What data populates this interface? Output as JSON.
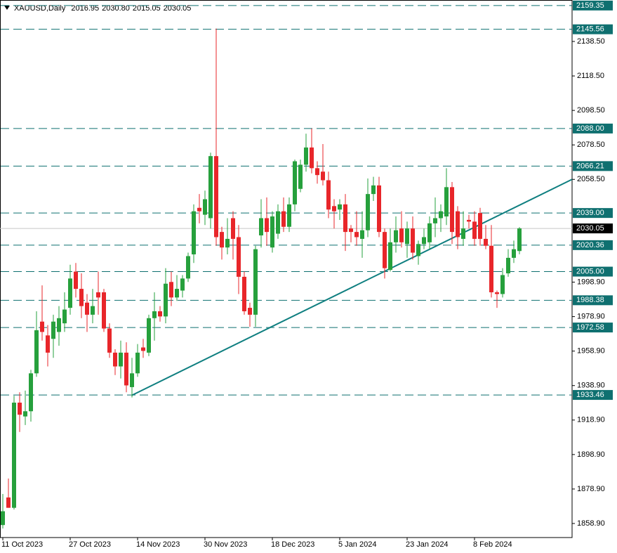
{
  "chart_data": {
    "type": "candlestick",
    "header": {
      "symbol": "XAUUSD,Daily",
      "ohlc": [
        "2016.95",
        "2030.80",
        "2015.05",
        "2030.05"
      ]
    },
    "categories": [
      "11 Oct 2023",
      null,
      null,
      null,
      null,
      null,
      null,
      null,
      null,
      null,
      null,
      null,
      "27 Oct 2023",
      null,
      null,
      null,
      null,
      null,
      null,
      null,
      null,
      null,
      null,
      null,
      "14 Nov 2023",
      null,
      null,
      null,
      null,
      null,
      null,
      null,
      null,
      null,
      null,
      null,
      "30 Nov 2023",
      null,
      null,
      null,
      null,
      null,
      null,
      null,
      null,
      null,
      null,
      null,
      "18 Dec 2023",
      null,
      null,
      null,
      null,
      null,
      null,
      null,
      null,
      null,
      null,
      null,
      "5 Jan 2024",
      null,
      null,
      null,
      null,
      null,
      null,
      null,
      null,
      null,
      null,
      null,
      "23 Jan 2024",
      null,
      null,
      null,
      null,
      null,
      null,
      null,
      null,
      null,
      null,
      null,
      "8 Feb 2024",
      null,
      null,
      null,
      null,
      null,
      null,
      null,
      null
    ],
    "open": [
      1858,
      1874,
      1868,
      1929,
      1921,
      1924,
      1946,
      1976,
      1968,
      1966,
      1970,
      1975,
      1984,
      2005,
      1995,
      1987,
      1980,
      1993,
      1993,
      1972,
      1958,
      1950,
      1958,
      1938,
      1946,
      1961,
      1958,
      1978,
      1982,
      1979,
      1999,
      1990,
      1994,
      2001,
      2015,
      2042,
      2038,
      2036,
      2072,
      2028,
      2019,
      2036,
      2025,
      2002,
      1984,
      1980,
      2026,
      2036,
      2019,
      2027,
      2040,
      2031,
      2044,
      2053,
      2067,
      2077,
      2065,
      2063,
      2058,
      2043,
      2041,
      2044,
      2030,
      2028,
      2024,
      2029,
      2050,
      2055,
      2028,
      2006,
      2022,
      2030,
      2021,
      2030,
      2014,
      2021,
      2022,
      2033,
      2036,
      2037,
      2054,
      2040,
      2024,
      2035,
      2034,
      2039,
      2024,
      2020,
      1993,
      1992,
      2004,
      2013,
      2016.95
    ],
    "high": [
      1876,
      1885,
      1933,
      1935,
      1936,
      1948,
      1982,
      1997,
      1974,
      1980,
      1985,
      1993,
      2009,
      2010,
      2004,
      1992,
      1995,
      2005,
      1995,
      1975,
      1960,
      1965,
      1964,
      1955,
      1963,
      1966,
      1980,
      1993,
      1985,
      2007,
      2005,
      2003,
      2003,
      2016,
      2044,
      2050,
      2052,
      2074,
      2146,
      2031,
      2036,
      2040,
      2032,
      2005,
      1987,
      2020,
      2047,
      2048,
      2040,
      2044,
      2048,
      2048,
      2070,
      2070,
      2085,
      2088,
      2069,
      2079,
      2063,
      2047,
      2047,
      2050,
      2032,
      2040,
      2040,
      2059,
      2060,
      2060,
      2030,
      2030,
      2037,
      2040,
      2034,
      2037,
      2023,
      2030,
      2037,
      2048,
      2044,
      2065,
      2057,
      2043,
      2040,
      2038,
      2040,
      2042,
      2032,
      2032,
      1994,
      2007,
      2018,
      2023,
      2030.8
    ],
    "low": [
      1856,
      1868,
      1867,
      1912,
      1916,
      1918,
      1944,
      1965,
      1950,
      1955,
      1962,
      1970,
      1980,
      1990,
      1978,
      1970,
      1975,
      1980,
      1970,
      1955,
      1945,
      1943,
      1935,
      1932,
      1944,
      1955,
      1956,
      1965,
      1976,
      1975,
      1985,
      1988,
      1990,
      1999,
      2010,
      2033,
      2032,
      2030,
      2020,
      2012,
      2015,
      2012,
      1992,
      1980,
      1973,
      1973,
      2019,
      2020,
      2016,
      2024,
      2028,
      2028,
      2040,
      2051,
      2063,
      2062,
      2056,
      2055,
      2036,
      2030,
      2035,
      2017,
      2022,
      2020,
      2013,
      2025,
      2046,
      2025,
      2001,
      2005,
      2016,
      2019,
      2013,
      2012,
      2009,
      2018,
      2018,
      2025,
      2028,
      2032,
      2021,
      2018,
      2020,
      2030,
      2020,
      2020,
      2018,
      1990,
      1984,
      1990,
      2002,
      2010,
      2015.05
    ],
    "close": [
      1866,
      1868,
      1929,
      1922,
      1924,
      1946,
      1971,
      1970,
      1958,
      1976,
      1978,
      1983,
      2001,
      1995,
      1985,
      1980,
      1985,
      1990,
      1972,
      1958,
      1950,
      1958,
      1939,
      1946,
      1958,
      1959,
      1978,
      1982,
      1979,
      1998,
      1990,
      1995,
      2001,
      2014,
      2040,
      2040,
      2047,
      2072,
      2025,
      2019,
      2024,
      2024,
      2002,
      1982,
      1980,
      2018,
      2036,
      2028,
      2037,
      2040,
      2031,
      2044,
      2069,
      2067,
      2077,
      2065,
      2061,
      2058,
      2041,
      2040,
      2044,
      2028,
      2028,
      2025,
      2029,
      2050,
      2055,
      2028,
      2007,
      2022,
      2029,
      2022,
      2030,
      2016,
      2021,
      2025,
      2033,
      2036,
      2040,
      2054,
      2028,
      2025,
      2030,
      2034,
      2024,
      2024,
      2020,
      1993,
      1992,
      2003,
      2013,
      2018,
      2030.05
    ],
    "up_color": "#26a03c",
    "down_color": "#e8262a",
    "ylim": [
      1850.75,
      2162.55
    ],
    "yticks": [
      {
        "value": 2138.5,
        "label": "2138.50"
      },
      {
        "value": 2118.5,
        "label": "2118.50"
      },
      {
        "value": 2098.5,
        "label": "2098.50"
      },
      {
        "value": 2078.5,
        "label": "2078.50"
      },
      {
        "value": 2058.5,
        "label": "2058.50"
      },
      {
        "value": 1998.9,
        "label": "1998.90"
      },
      {
        "value": 1978.9,
        "label": "1978.90"
      },
      {
        "value": 1958.9,
        "label": "1958.90"
      },
      {
        "value": 1938.9,
        "label": "1938.90"
      },
      {
        "value": 1918.9,
        "label": "1918.90"
      },
      {
        "value": 1898.9,
        "label": "1898.90"
      },
      {
        "value": 1878.9,
        "label": "1878.90"
      },
      {
        "value": 1858.9,
        "label": "1858.90"
      }
    ],
    "levels": [
      2159.35,
      2145.56,
      {
        "value": 2088,
        "label": "2088.00"
      },
      2066.21,
      {
        "value": 2039,
        "label": "2039.00"
      },
      2020.36,
      {
        "value": 2005,
        "label": "2005.00"
      },
      1988.38,
      1972.58,
      1933.46
    ],
    "level_color": "#0f7070",
    "current_price": 2030.05,
    "trendline": {
      "start": {
        "index": 23,
        "price": 1933.3
      },
      "end": {
        "index": 101.375,
        "price": 2058.5
      },
      "color": "#0f7f80"
    }
  }
}
